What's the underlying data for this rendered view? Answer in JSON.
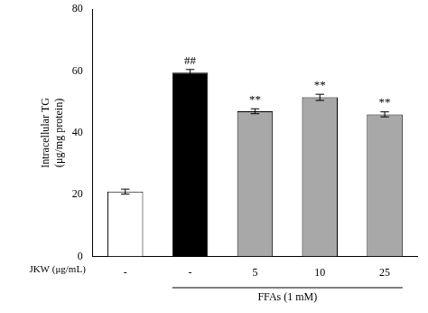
{
  "chart_data": {
    "type": "bar",
    "categories": [
      "-",
      "-",
      "5",
      "10",
      "25"
    ],
    "values": [
      21.0,
      59.5,
      47.0,
      51.5,
      46.0
    ],
    "errors": [
      0.8,
      1.0,
      0.8,
      1.0,
      0.8
    ],
    "colors": [
      "white",
      "black",
      "#a8a8a8",
      "#a8a8a8",
      "#a8a8a8"
    ],
    "ylabel": "Intracellular TG\n(μg/mg protein)",
    "xlabel": "JKW (μg/mL)",
    "annotations": [
      {
        "text": "##",
        "x": 1,
        "y": 61.0
      },
      {
        "text": "**",
        "x": 2,
        "y": 48.5
      },
      {
        "text": "**",
        "x": 3,
        "y": 53.2
      },
      {
        "text": "**",
        "x": 4,
        "y": 47.5
      }
    ],
    "group_labels": [
      {
        "text": "FFAs (1 mM)",
        "from": 1,
        "to": 4
      }
    ],
    "ylim": [
      0,
      80
    ],
    "yticks": [
      0,
      20,
      40,
      60,
      80
    ],
    "grid": false
  }
}
